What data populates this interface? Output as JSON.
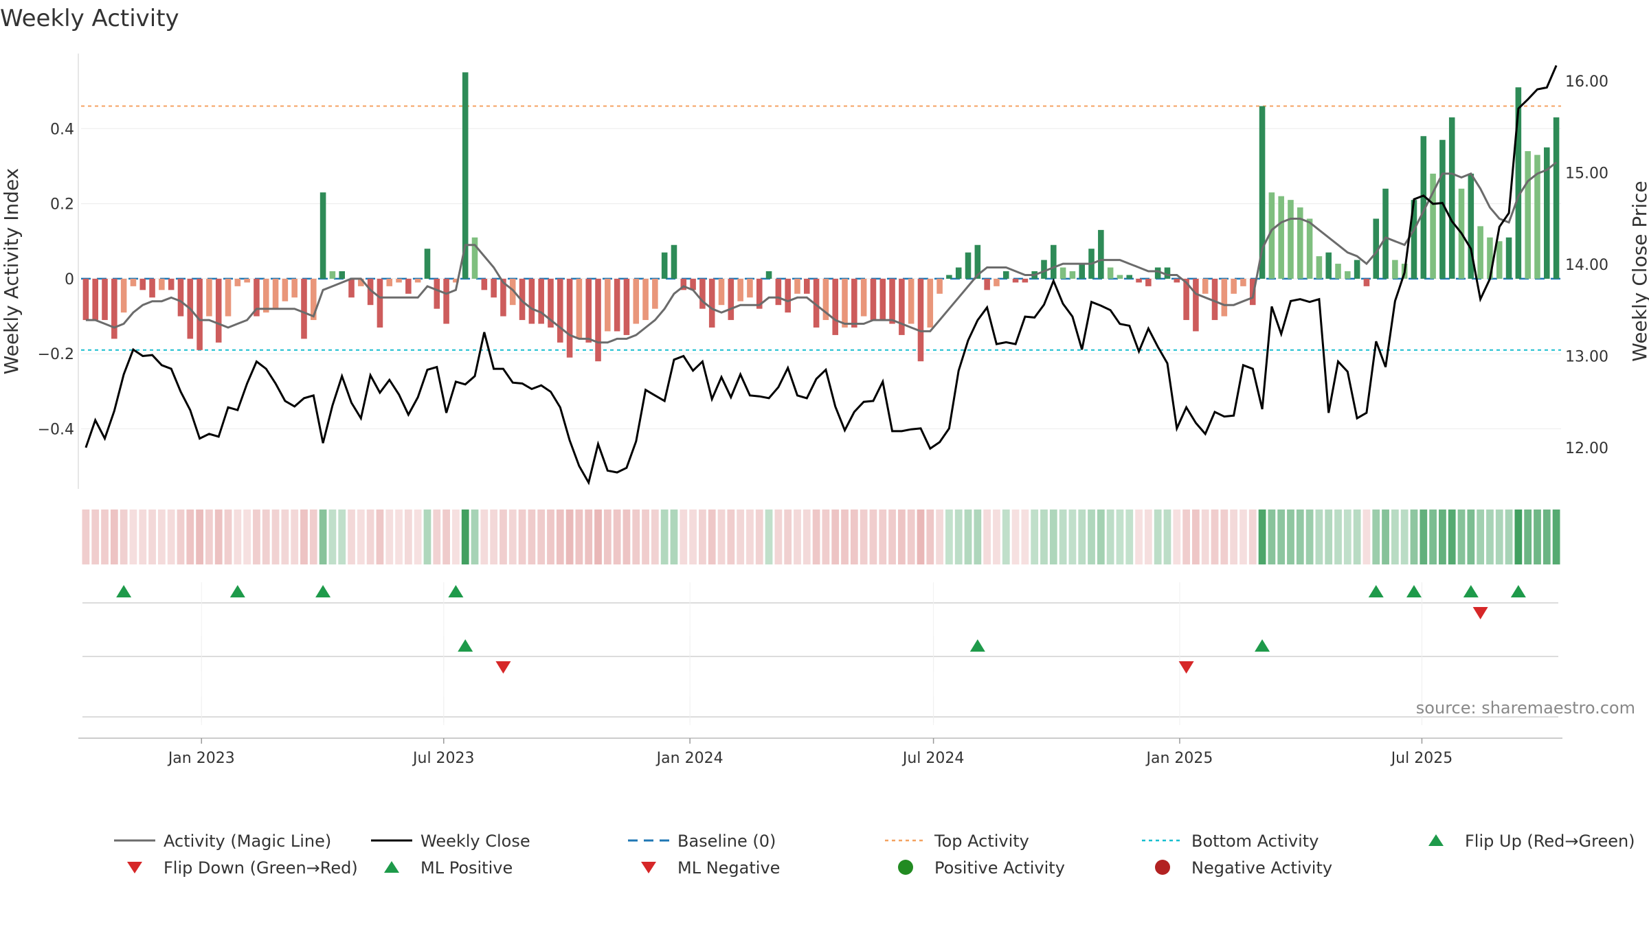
{
  "chart_data": {
    "type": "bar+line",
    "title": "Weekly Activity",
    "ylabel_left": "Weekly Activity Index",
    "ylabel_right": "Weekly Close Price",
    "ylim_left": [
      -0.56,
      0.6
    ],
    "ylim_right": [
      11.55,
      16.3
    ],
    "yticks_left": [
      {
        "v": 0.4,
        "label": "0.4"
      },
      {
        "v": 0.2,
        "label": "0.2"
      },
      {
        "v": 0,
        "label": "0"
      },
      {
        "v": -0.2,
        "label": "−0.2"
      },
      {
        "v": -0.4,
        "label": "−0.4"
      }
    ],
    "yticks_right": [
      {
        "v": 16,
        "label": "16.00"
      },
      {
        "v": 15,
        "label": "15.00"
      },
      {
        "v": 14,
        "label": "14.00"
      },
      {
        "v": 13,
        "label": "13.00"
      },
      {
        "v": 12,
        "label": "12.00"
      }
    ],
    "x_range": [
      "2022-10-03",
      "2025-10-13"
    ],
    "x_ticks": [
      "Jan 2023",
      "Jul 2023",
      "Jan 2024",
      "Jul 2024",
      "Jan 2025",
      "Jul 2025"
    ],
    "top_activity": 0.46,
    "bottom_activity": -0.19,
    "baseline": 0,
    "activity": [
      -0.11,
      -0.11,
      -0.11,
      -0.16,
      -0.09,
      -0.02,
      -0.03,
      -0.05,
      -0.03,
      -0.03,
      -0.1,
      -0.16,
      -0.19,
      -0.1,
      -0.17,
      -0.1,
      -0.02,
      -0.01,
      -0.1,
      -0.09,
      -0.08,
      -0.06,
      -0.05,
      -0.16,
      -0.11,
      0.23,
      0.02,
      0.02,
      -0.05,
      -0.02,
      -0.07,
      -0.13,
      -0.02,
      -0.01,
      -0.04,
      -0.01,
      0.08,
      -0.08,
      -0.12,
      -0.01,
      0.55,
      0.11,
      -0.03,
      -0.05,
      -0.1,
      -0.07,
      -0.11,
      -0.12,
      -0.12,
      -0.13,
      -0.17,
      -0.21,
      -0.16,
      -0.17,
      -0.22,
      -0.14,
      -0.14,
      -0.15,
      -0.12,
      -0.11,
      -0.08,
      0.07,
      0.09,
      -0.03,
      -0.03,
      -0.08,
      -0.13,
      -0.07,
      -0.11,
      -0.06,
      -0.05,
      -0.08,
      0.02,
      -0.07,
      -0.09,
      -0.04,
      -0.04,
      -0.13,
      -0.11,
      -0.15,
      -0.13,
      -0.13,
      -0.1,
      -0.11,
      -0.11,
      -0.12,
      -0.15,
      -0.12,
      -0.22,
      -0.13,
      -0.04,
      0.01,
      0.03,
      0.07,
      0.09,
      -0.03,
      -0.02,
      0.02,
      -0.01,
      -0.01,
      0.02,
      0.05,
      0.09,
      0.03,
      0.02,
      0.04,
      0.08,
      0.13,
      0.03,
      0.01,
      0.01,
      -0.01,
      -0.02,
      0.03,
      0.03,
      -0.01,
      -0.11,
      -0.14,
      -0.04,
      -0.11,
      -0.1,
      -0.04,
      -0.02,
      -0.07,
      0.46,
      0.23,
      0.22,
      0.21,
      0.19,
      0.16,
      0.06,
      0.07,
      0.04,
      0.02,
      0.05,
      -0.02,
      0.16,
      0.24,
      0.05,
      0.04,
      0.21,
      0.38,
      0.28,
      0.37,
      0.43,
      0.24,
      0.28,
      0.14,
      0.11,
      0.1,
      0.11,
      0.51,
      0.34,
      0.33,
      0.35,
      0.43
    ],
    "magic_line": [
      -0.11,
      -0.11,
      -0.12,
      -0.13,
      -0.12,
      -0.09,
      -0.07,
      -0.06,
      -0.06,
      -0.05,
      -0.06,
      -0.08,
      -0.11,
      -0.11,
      -0.12,
      -0.13,
      -0.12,
      -0.11,
      -0.08,
      -0.08,
      -0.08,
      -0.08,
      -0.08,
      -0.09,
      -0.1,
      -0.03,
      -0.02,
      -0.01,
      0.0,
      0.0,
      -0.03,
      -0.05,
      -0.05,
      -0.05,
      -0.05,
      -0.05,
      -0.02,
      -0.03,
      -0.04,
      -0.03,
      0.09,
      0.09,
      0.06,
      0.03,
      -0.01,
      -0.03,
      -0.06,
      -0.08,
      -0.09,
      -0.11,
      -0.13,
      -0.15,
      -0.16,
      -0.16,
      -0.17,
      -0.17,
      -0.16,
      -0.16,
      -0.15,
      -0.13,
      -0.11,
      -0.08,
      -0.04,
      -0.02,
      -0.03,
      -0.06,
      -0.08,
      -0.09,
      -0.08,
      -0.07,
      -0.07,
      -0.07,
      -0.05,
      -0.05,
      -0.06,
      -0.05,
      -0.05,
      -0.07,
      -0.09,
      -0.11,
      -0.12,
      -0.12,
      -0.12,
      -0.11,
      -0.11,
      -0.11,
      -0.12,
      -0.13,
      -0.14,
      -0.14,
      -0.11,
      -0.08,
      -0.05,
      -0.02,
      0.01,
      0.03,
      0.03,
      0.03,
      0.02,
      0.01,
      0.01,
      0.02,
      0.03,
      0.04,
      0.04,
      0.04,
      0.04,
      0.05,
      0.05,
      0.05,
      0.04,
      0.03,
      0.02,
      0.02,
      0.01,
      0.01,
      -0.01,
      -0.04,
      -0.05,
      -0.06,
      -0.07,
      -0.07,
      -0.06,
      -0.05,
      0.08,
      0.13,
      0.15,
      0.16,
      0.16,
      0.15,
      0.13,
      0.11,
      0.09,
      0.07,
      0.06,
      0.04,
      0.07,
      0.11,
      0.1,
      0.09,
      0.13,
      0.18,
      0.23,
      0.28,
      0.28,
      0.27,
      0.28,
      0.24,
      0.19,
      0.16,
      0.15,
      0.22,
      0.26,
      0.28,
      0.29,
      0.31
    ],
    "weekly_close": [
      12.0,
      12.3,
      12.1,
      12.4,
      12.8,
      13.07,
      13.0,
      13.01,
      12.9,
      12.86,
      12.61,
      12.41,
      12.1,
      12.15,
      12.12,
      12.44,
      12.41,
      12.7,
      12.94,
      12.86,
      12.7,
      12.51,
      12.45,
      12.54,
      12.57,
      12.05,
      12.46,
      12.78,
      12.49,
      12.32,
      12.79,
      12.6,
      12.74,
      12.58,
      12.36,
      12.55,
      12.85,
      12.88,
      12.38,
      12.72,
      12.69,
      12.78,
      13.26,
      12.86,
      12.86,
      12.71,
      12.7,
      12.64,
      12.68,
      12.61,
      12.44,
      12.08,
      11.8,
      11.62,
      12.04,
      11.75,
      11.73,
      11.78,
      12.07,
      12.63,
      12.57,
      12.51,
      12.96,
      13.0,
      12.84,
      12.94,
      12.53,
      12.77,
      12.55,
      12.8,
      12.57,
      12.56,
      12.54,
      12.66,
      12.87,
      12.57,
      12.54,
      12.75,
      12.85,
      12.45,
      12.19,
      12.39,
      12.5,
      12.51,
      12.72,
      12.18,
      12.18,
      12.2,
      12.21,
      11.99,
      12.06,
      12.21,
      12.84,
      13.17,
      13.39,
      13.53,
      13.13,
      13.15,
      13.13,
      13.43,
      13.42,
      13.56,
      13.82,
      13.57,
      13.43,
      13.07,
      13.59,
      13.55,
      13.5,
      13.35,
      13.33,
      13.05,
      13.3,
      13.1,
      12.92,
      12.21,
      12.44,
      12.27,
      12.15,
      12.39,
      12.34,
      12.35,
      12.9,
      12.86,
      12.42,
      13.54,
      13.24,
      13.6,
      13.62,
      13.59,
      13.62,
      12.38,
      12.94,
      12.83,
      12.32,
      12.38,
      13.16,
      12.88,
      13.6,
      13.91,
      14.71,
      14.75,
      14.66,
      14.67,
      14.47,
      14.34,
      14.17,
      13.62,
      13.84,
      14.41,
      14.56,
      15.7,
      15.8,
      15.91,
      15.93,
      16.17
    ],
    "legend": [
      "Activity (Magic Line)",
      "Weekly Close",
      "Baseline (0)",
      "Top Activity",
      "Bottom Activity",
      "Flip Up (Red→Green)",
      "Flip Down (Green→Red)",
      "ML Positive",
      "ML Negative",
      "Positive Activity",
      "Negative Activity"
    ],
    "source": "source: sharemaestro.com",
    "colors": {
      "pos_strong": "#2e8b57",
      "pos_weak": "#7fbf7f",
      "neg_strong": "#cd5c5c",
      "neg_weak": "#e9967a",
      "magic_line": "#6b6b6b",
      "close": "#000000",
      "baseline": "#1f77b4",
      "top": "#f4a261",
      "bottom": "#17becf",
      "up_marker": "#1e9a4a",
      "down_marker": "#d62728",
      "pos_dot": "#228b22",
      "neg_dot": "#b22222"
    }
  }
}
